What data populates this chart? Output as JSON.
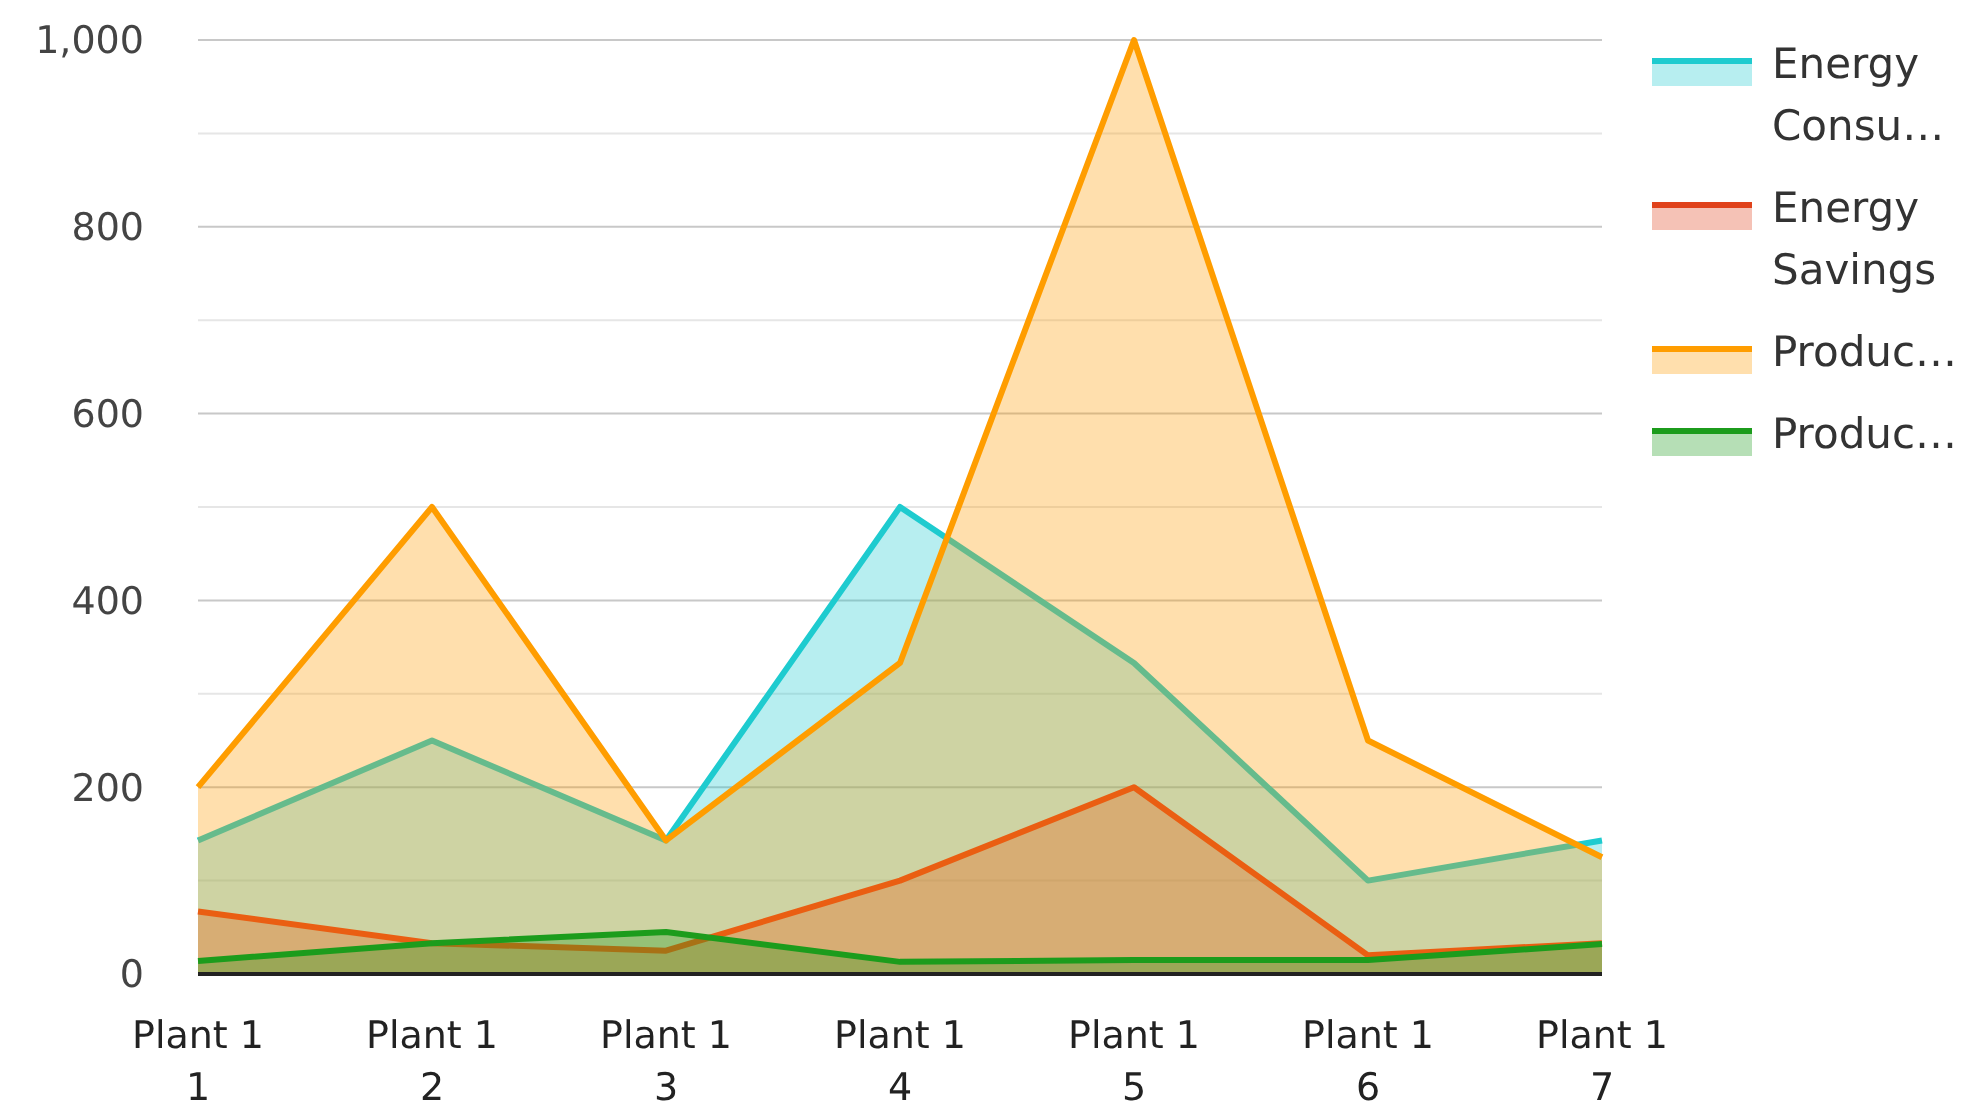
{
  "chart_data": {
    "type": "area",
    "categories": [
      "Plant 1 1",
      "Plant 1 2",
      "Plant 1 3",
      "Plant 1 4",
      "Plant 1 5",
      "Plant 1 6",
      "Plant 1 7"
    ],
    "series": [
      {
        "name": "Energy Consu…",
        "color": "#1ecbcf",
        "values": [
          143,
          250,
          143,
          500,
          333,
          100,
          143
        ]
      },
      {
        "name": "Energy Savings",
        "color": "#e0421b",
        "values": [
          67,
          33,
          25,
          100,
          200,
          20,
          33
        ]
      },
      {
        "name": "Produc…",
        "color": "#ff9d00",
        "values": [
          200,
          500,
          143,
          333,
          1000,
          250,
          125
        ]
      },
      {
        "name": "Produc…",
        "color": "#1c9c1c",
        "values": [
          14,
          33,
          45,
          13,
          15,
          15,
          32
        ]
      }
    ],
    "ylim": [
      0,
      1000
    ],
    "yticks": [
      0,
      {
        "value": 100,
        "label": null
      },
      200,
      {
        "value": 300,
        "label": null
      },
      400,
      {
        "value": 500,
        "label": null
      },
      600,
      {
        "value": 700,
        "label": null
      },
      800,
      {
        "value": 900,
        "label": null
      },
      {
        "value": 1000,
        "label": "1,000"
      }
    ],
    "grid": "y",
    "legend": "top right"
  }
}
